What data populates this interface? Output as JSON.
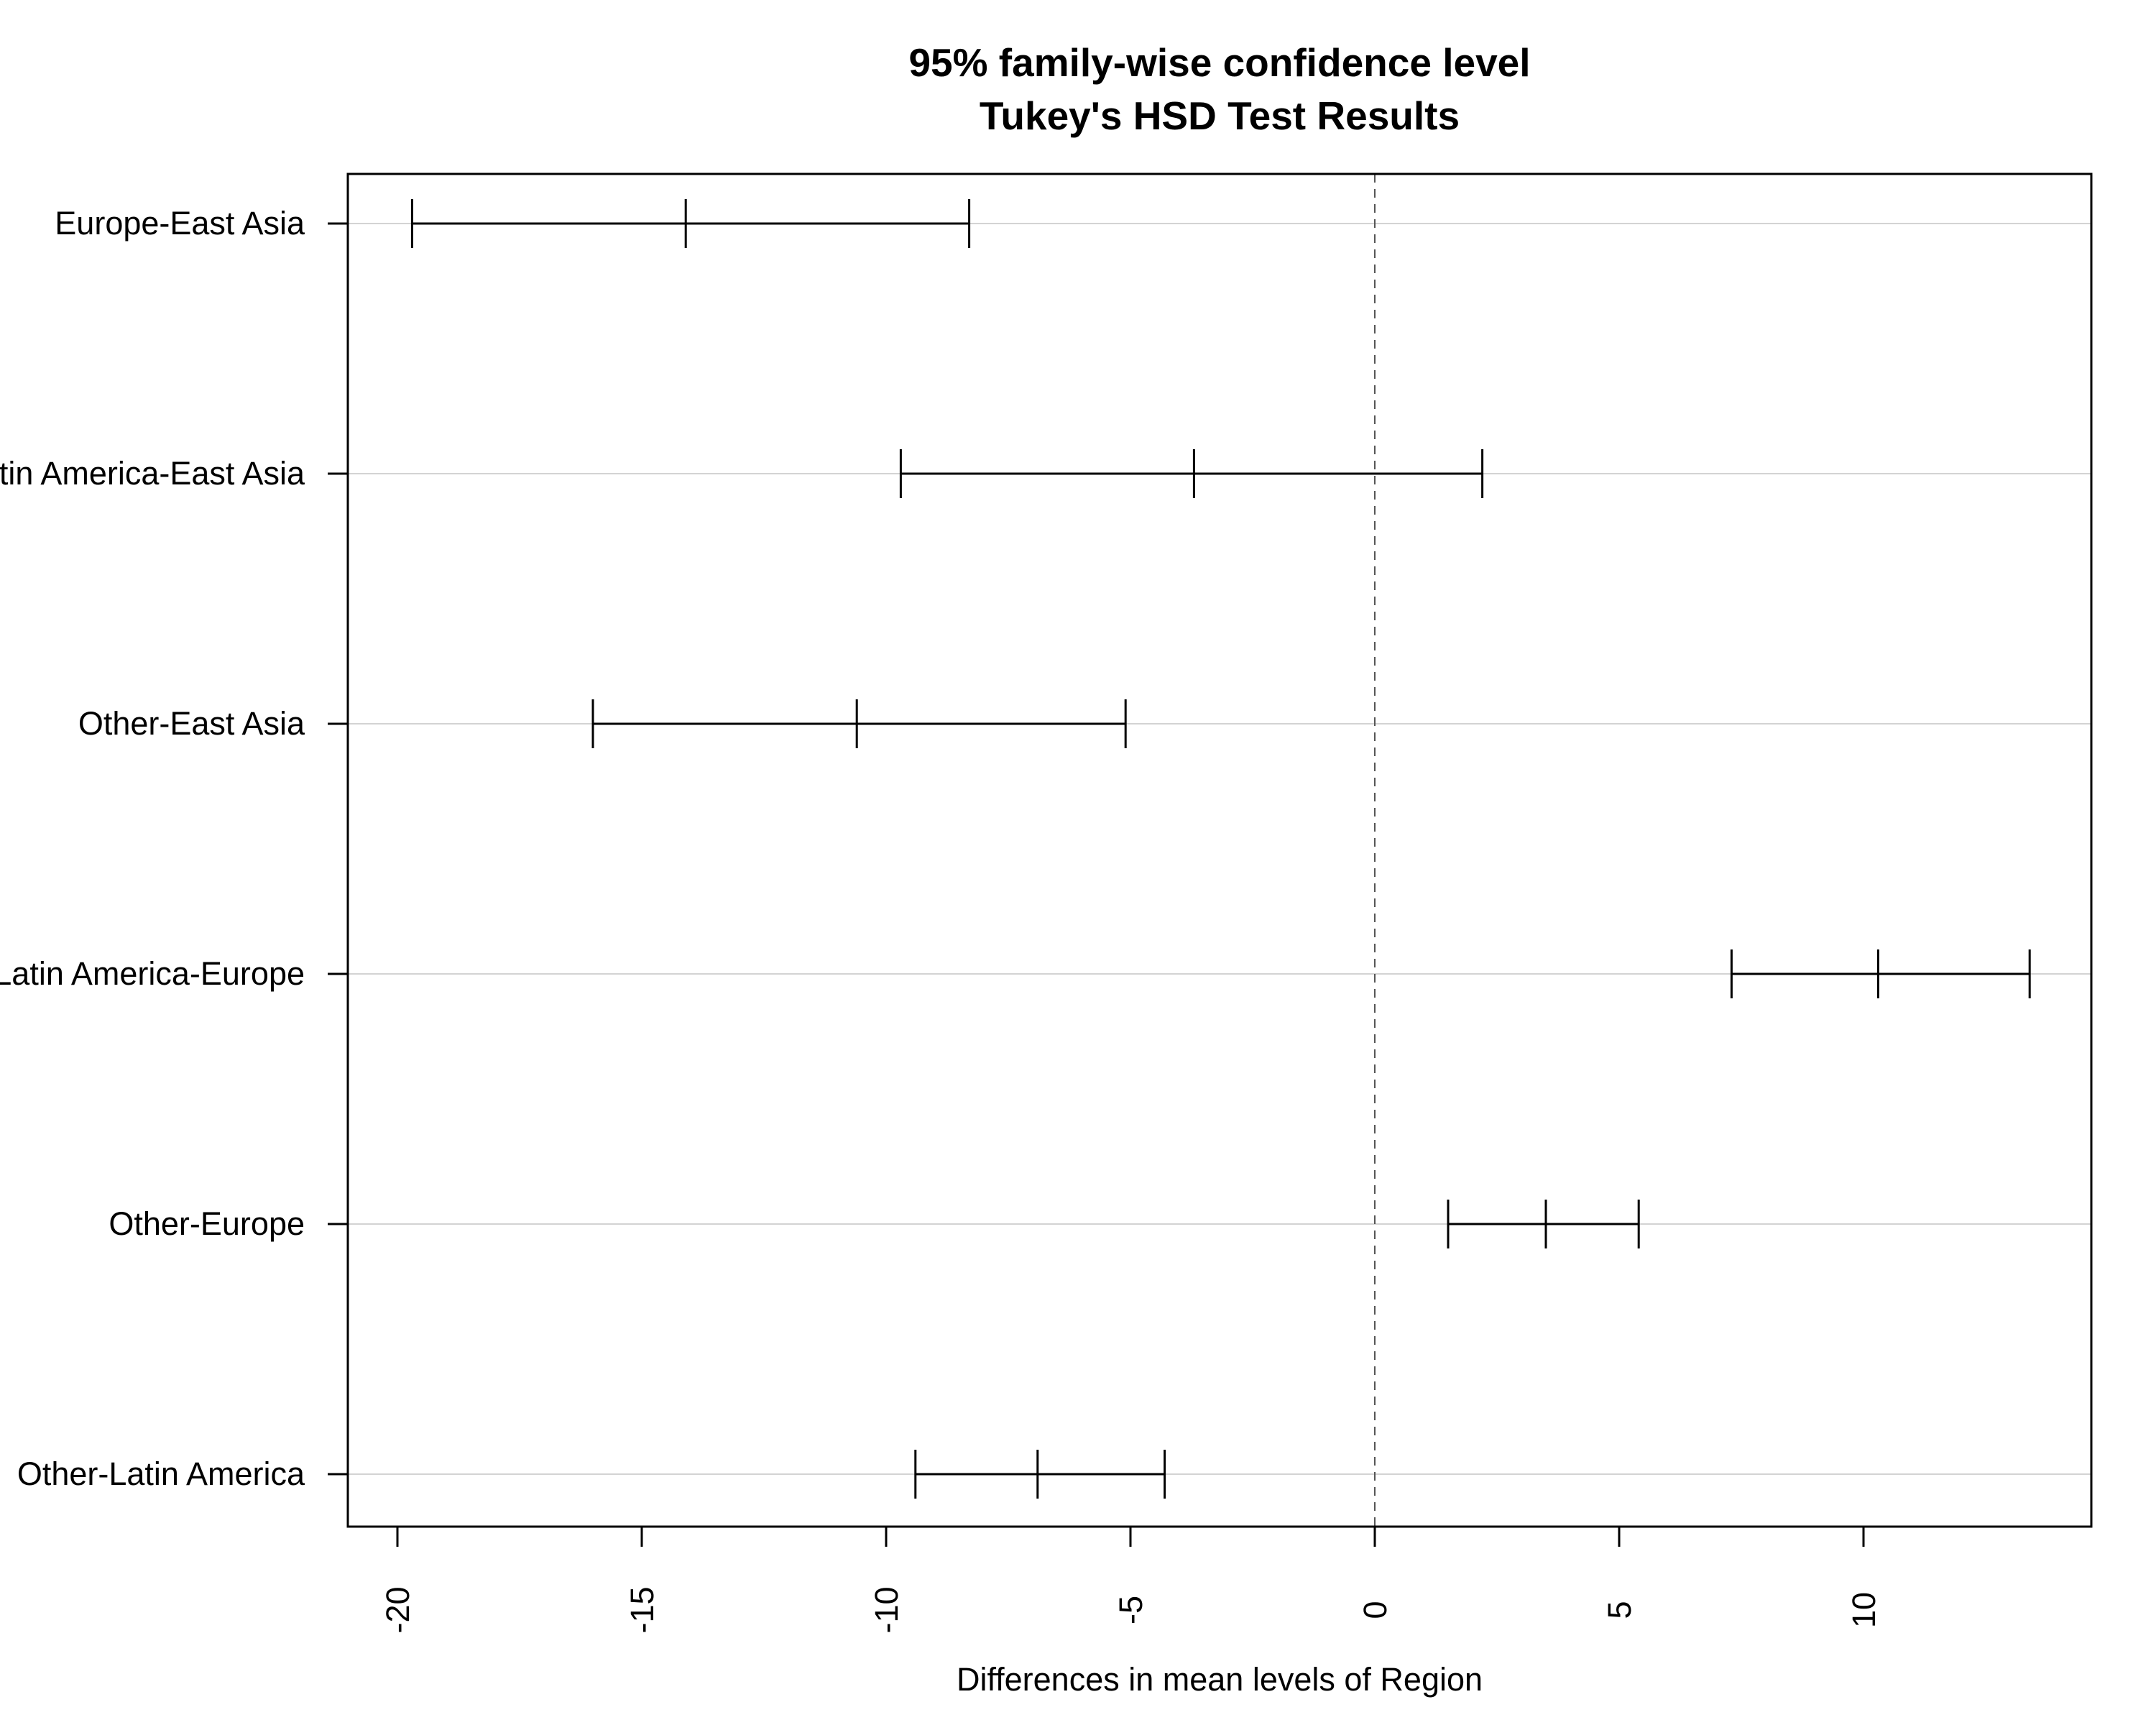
{
  "chart_data": {
    "type": "errorbar",
    "title": "95% family-wise confidence level",
    "subtitle": "Tukey's HSD Test Results",
    "xlabel": "Differences in mean levels of Region",
    "ylabel": "",
    "xlim": [
      -21,
      14.7
    ],
    "xticks": [
      -20,
      -15,
      -10,
      -5,
      0,
      5,
      10
    ],
    "xtick_labels": [
      "-20",
      "-15",
      "-10",
      "-5",
      "0",
      "5",
      "10"
    ],
    "reference_line": 0,
    "grid": "horizontal",
    "comparisons": [
      {
        "label": "Europe-East Asia",
        "lwr": -19.7,
        "diff": -14.1,
        "upr": -8.3
      },
      {
        "label": "Latin America-East Asia",
        "lwr": -9.7,
        "diff": -3.7,
        "upr": 2.2
      },
      {
        "label": "Other-East Asia",
        "lwr": -16.0,
        "diff": -10.6,
        "upr": -5.1
      },
      {
        "label": "Latin America-Europe",
        "lwr": 7.3,
        "diff": 10.3,
        "upr": 13.4
      },
      {
        "label": "Other-Europe",
        "lwr": 1.5,
        "diff": 3.5,
        "upr": 5.4
      },
      {
        "label": "Other-Latin America",
        "lwr": -9.4,
        "diff": -6.9,
        "upr": -4.3
      }
    ],
    "colors": {
      "line": "#000000",
      "grid": "#d3d3d3",
      "reference": "#555555"
    }
  }
}
